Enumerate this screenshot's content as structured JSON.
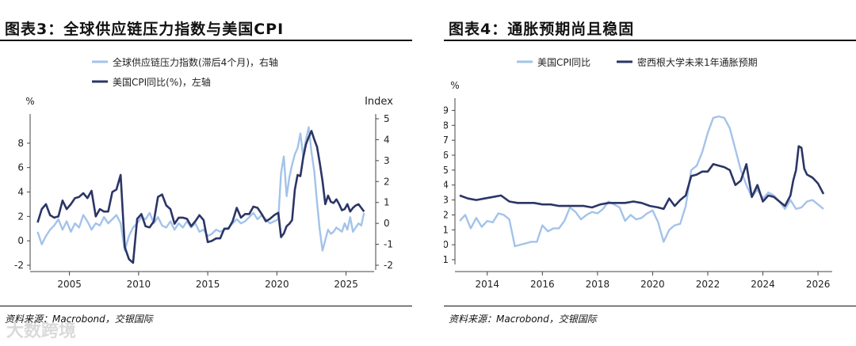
{
  "source_text": "资料来源：Macrobond，交银国际",
  "watermark": "大数跨境",
  "colors": {
    "light": "#a3c3ea",
    "dark": "#2b3566",
    "axis": "#444444",
    "text": "#222222"
  },
  "chart_data": [
    {
      "id": "left",
      "type": "line",
      "title": "图表3：全球供应链压力指数与美国CPI",
      "ylabel_left": "%",
      "ylabel_right": "Index",
      "ylim_left": [
        -2,
        10
      ],
      "ylim_right": [
        -2,
        5
      ],
      "yticks_left": [
        -2,
        0,
        2,
        4,
        6,
        8
      ],
      "yticks_right": [
        -2,
        -1,
        0,
        1,
        2,
        3,
        4,
        5
      ],
      "xlim": [
        2002.5,
        2026.8
      ],
      "xticks": [
        2005,
        2010,
        2015,
        2020,
        2025
      ],
      "series": [
        {
          "name": "全球供应链压力指数(滞后4个月)，右轴",
          "axis": "right",
          "color": "light",
          "x": [
            2002.7,
            2003.0,
            2003.3,
            2003.6,
            2003.9,
            2004.2,
            2004.5,
            2004.8,
            2005.1,
            2005.4,
            2005.7,
            2006.0,
            2006.3,
            2006.6,
            2006.9,
            2007.2,
            2007.5,
            2007.8,
            2008.1,
            2008.4,
            2008.7,
            2009.0,
            2009.3,
            2009.6,
            2009.9,
            2010.2,
            2010.5,
            2010.8,
            2011.1,
            2011.4,
            2011.7,
            2012.0,
            2012.3,
            2012.6,
            2012.9,
            2013.2,
            2013.5,
            2013.8,
            2014.1,
            2014.4,
            2014.7,
            2015.0,
            2015.3,
            2015.6,
            2015.9,
            2016.2,
            2016.5,
            2016.8,
            2017.1,
            2017.4,
            2017.7,
            2018.0,
            2018.3,
            2018.6,
            2018.9,
            2019.2,
            2019.5,
            2019.8,
            2020.1,
            2020.3,
            2020.5,
            2020.7,
            2020.9,
            2021.1,
            2021.3,
            2021.5,
            2021.7,
            2021.9,
            2022.1,
            2022.3,
            2022.5,
            2022.7,
            2022.9,
            2023.1,
            2023.3,
            2023.5,
            2023.7,
            2023.9,
            2024.1,
            2024.3,
            2024.5,
            2024.7,
            2024.9,
            2025.1,
            2025.3,
            2025.5,
            2025.7,
            2025.9,
            2026.1,
            2026.3
          ],
          "values": [
            -0.4,
            -1.0,
            -0.6,
            -0.3,
            -0.1,
            0.2,
            -0.3,
            0.1,
            -0.4,
            0.0,
            -0.2,
            0.4,
            0.1,
            -0.3,
            0.0,
            -0.1,
            0.3,
            0.0,
            0.2,
            0.4,
            0.0,
            -1.3,
            -0.6,
            -0.2,
            0.0,
            0.3,
            0.2,
            0.5,
            0.0,
            0.3,
            -0.1,
            -0.2,
            0.1,
            -0.3,
            0.0,
            -0.2,
            0.1,
            -0.2,
            0.0,
            -0.4,
            -0.3,
            -0.6,
            -0.5,
            -0.3,
            -0.4,
            -0.3,
            -0.2,
            0.0,
            0.2,
            0.0,
            0.1,
            0.3,
            0.5,
            0.2,
            0.4,
            0.2,
            0.0,
            0.1,
            0.2,
            2.4,
            3.2,
            1.3,
            2.2,
            2.8,
            3.3,
            3.6,
            4.3,
            3.2,
            4.0,
            4.6,
            3.4,
            2.5,
            1.0,
            -0.3,
            -1.3,
            -0.8,
            -0.3,
            -0.5,
            -0.4,
            -0.2,
            -0.3,
            -0.4,
            0.0,
            -0.3,
            0.3,
            -0.4,
            -0.2,
            0.0,
            -0.1,
            0.5
          ]
        },
        {
          "name": "美国CPI同比(%)，左轴",
          "axis": "left",
          "color": "dark",
          "x": [
            2002.7,
            2003.0,
            2003.3,
            2003.6,
            2003.9,
            2004.2,
            2004.5,
            2004.8,
            2005.1,
            2005.4,
            2005.7,
            2006.0,
            2006.3,
            2006.6,
            2006.9,
            2007.2,
            2007.5,
            2007.8,
            2008.1,
            2008.4,
            2008.7,
            2009.0,
            2009.3,
            2009.6,
            2009.9,
            2010.2,
            2010.5,
            2010.8,
            2011.1,
            2011.4,
            2011.7,
            2012.0,
            2012.3,
            2012.6,
            2012.9,
            2013.2,
            2013.5,
            2013.8,
            2014.1,
            2014.4,
            2014.7,
            2015.0,
            2015.3,
            2015.6,
            2015.9,
            2016.2,
            2016.5,
            2016.8,
            2017.1,
            2017.4,
            2017.7,
            2018.0,
            2018.3,
            2018.6,
            2018.9,
            2019.2,
            2019.5,
            2019.8,
            2020.1,
            2020.3,
            2020.5,
            2020.7,
            2020.9,
            2021.1,
            2021.3,
            2021.5,
            2021.7,
            2021.9,
            2022.1,
            2022.3,
            2022.5,
            2022.7,
            2022.9,
            2023.1,
            2023.3,
            2023.5,
            2023.7,
            2023.9,
            2024.1,
            2024.3,
            2024.5,
            2024.7,
            2024.9,
            2025.1,
            2025.3,
            2025.5,
            2025.7,
            2025.9,
            2026.1,
            2026.3
          ],
          "values": [
            1.5,
            2.6,
            3.0,
            2.1,
            1.9,
            2.0,
            3.3,
            2.6,
            3.0,
            3.5,
            3.6,
            3.9,
            3.5,
            4.1,
            2.0,
            2.6,
            2.4,
            2.4,
            4.0,
            4.2,
            5.4,
            -0.5,
            -1.5,
            -1.8,
            1.8,
            2.2,
            1.2,
            1.1,
            1.6,
            3.6,
            3.8,
            2.9,
            2.6,
            1.4,
            1.9,
            1.9,
            1.8,
            1.2,
            1.6,
            2.1,
            1.7,
            -0.1,
            0.0,
            0.2,
            0.2,
            1.0,
            1.0,
            1.6,
            2.7,
            1.9,
            2.2,
            2.2,
            2.8,
            2.7,
            2.2,
            1.6,
            1.8,
            2.1,
            2.3,
            0.3,
            0.6,
            1.2,
            1.4,
            1.7,
            4.2,
            5.4,
            5.3,
            6.8,
            7.9,
            8.5,
            9.0,
            8.3,
            7.7,
            6.4,
            4.9,
            3.0,
            3.7,
            3.2,
            3.1,
            3.4,
            3.0,
            2.5,
            2.6,
            3.0,
            2.4,
            2.7,
            2.9,
            3.0,
            2.7,
            2.4
          ]
        }
      ]
    },
    {
      "id": "right",
      "type": "line",
      "title": "图表4：通胀预期尚且稳固",
      "ylabel_left": "%",
      "ylim_left": [
        -1,
        9.5
      ],
      "yticks_left": [
        -1,
        0,
        1,
        2,
        3,
        4,
        5,
        6,
        7,
        8,
        9
      ],
      "xlim": [
        2013.0,
        2026.4
      ],
      "xticks": [
        2014,
        2016,
        2018,
        2020,
        2022,
        2024,
        2026
      ],
      "series": [
        {
          "name": "美国CPI同比",
          "axis": "left",
          "color": "light",
          "x": [
            2013.0,
            2013.2,
            2013.4,
            2013.6,
            2013.8,
            2014.0,
            2014.2,
            2014.4,
            2014.6,
            2014.8,
            2015.0,
            2015.2,
            2015.4,
            2015.6,
            2015.8,
            2016.0,
            2016.2,
            2016.4,
            2016.6,
            2016.8,
            2017.0,
            2017.2,
            2017.4,
            2017.6,
            2017.8,
            2018.0,
            2018.2,
            2018.4,
            2018.6,
            2018.8,
            2019.0,
            2019.2,
            2019.4,
            2019.6,
            2019.8,
            2020.0,
            2020.2,
            2020.4,
            2020.6,
            2020.8,
            2021.0,
            2021.2,
            2021.4,
            2021.6,
            2021.8,
            2022.0,
            2022.2,
            2022.4,
            2022.6,
            2022.8,
            2023.0,
            2023.2,
            2023.4,
            2023.6,
            2023.8,
            2024.0,
            2024.2,
            2024.4,
            2024.6,
            2024.8,
            2025.0,
            2025.2,
            2025.4,
            2025.6,
            2025.8,
            2026.0,
            2026.2
          ],
          "values": [
            1.6,
            2.0,
            1.1,
            1.8,
            1.2,
            1.6,
            1.5,
            2.1,
            2.0,
            1.7,
            -0.1,
            0.0,
            0.1,
            0.2,
            0.2,
            1.3,
            0.9,
            1.1,
            1.1,
            1.6,
            2.5,
            2.2,
            1.7,
            2.0,
            2.2,
            2.1,
            2.4,
            2.9,
            2.7,
            2.5,
            1.6,
            2.0,
            1.7,
            1.8,
            2.1,
            2.3,
            1.5,
            0.2,
            1.0,
            1.3,
            1.4,
            2.6,
            5.0,
            5.3,
            6.2,
            7.5,
            8.5,
            8.6,
            8.5,
            7.8,
            6.4,
            5.0,
            4.0,
            3.2,
            3.7,
            3.1,
            3.5,
            3.3,
            2.9,
            2.4,
            3.0,
            2.4,
            2.5,
            2.9,
            3.0,
            2.7,
            2.4
          ]
        },
        {
          "name": "密西根大学未来1年通胀预期",
          "axis": "left",
          "color": "dark",
          "x": [
            2013.0,
            2013.3,
            2013.6,
            2013.9,
            2014.2,
            2014.5,
            2014.8,
            2015.1,
            2015.4,
            2015.7,
            2016.0,
            2016.3,
            2016.6,
            2016.9,
            2017.2,
            2017.5,
            2017.8,
            2018.1,
            2018.4,
            2018.7,
            2019.0,
            2019.3,
            2019.6,
            2019.9,
            2020.2,
            2020.4,
            2020.6,
            2020.8,
            2021.0,
            2021.2,
            2021.4,
            2021.6,
            2021.8,
            2022.0,
            2022.2,
            2022.4,
            2022.6,
            2022.8,
            2023.0,
            2023.2,
            2023.4,
            2023.6,
            2023.8,
            2024.0,
            2024.2,
            2024.4,
            2024.6,
            2024.8,
            2025.0,
            2025.1,
            2025.2,
            2025.3,
            2025.4,
            2025.5,
            2025.6,
            2025.8,
            2026.0,
            2026.2
          ],
          "values": [
            3.3,
            3.1,
            3.0,
            3.1,
            3.2,
            3.3,
            2.9,
            2.8,
            2.8,
            2.8,
            2.7,
            2.7,
            2.6,
            2.6,
            2.6,
            2.6,
            2.5,
            2.7,
            2.8,
            2.8,
            2.8,
            2.9,
            2.8,
            2.6,
            2.5,
            2.4,
            3.1,
            2.6,
            3.0,
            3.3,
            4.6,
            4.7,
            4.9,
            4.9,
            5.4,
            5.3,
            5.2,
            5.0,
            4.0,
            4.3,
            5.4,
            3.2,
            4.0,
            2.9,
            3.3,
            3.2,
            2.9,
            2.6,
            3.3,
            4.3,
            5.0,
            6.6,
            6.5,
            5.1,
            4.7,
            4.5,
            4.1,
            3.4
          ]
        }
      ]
    }
  ]
}
